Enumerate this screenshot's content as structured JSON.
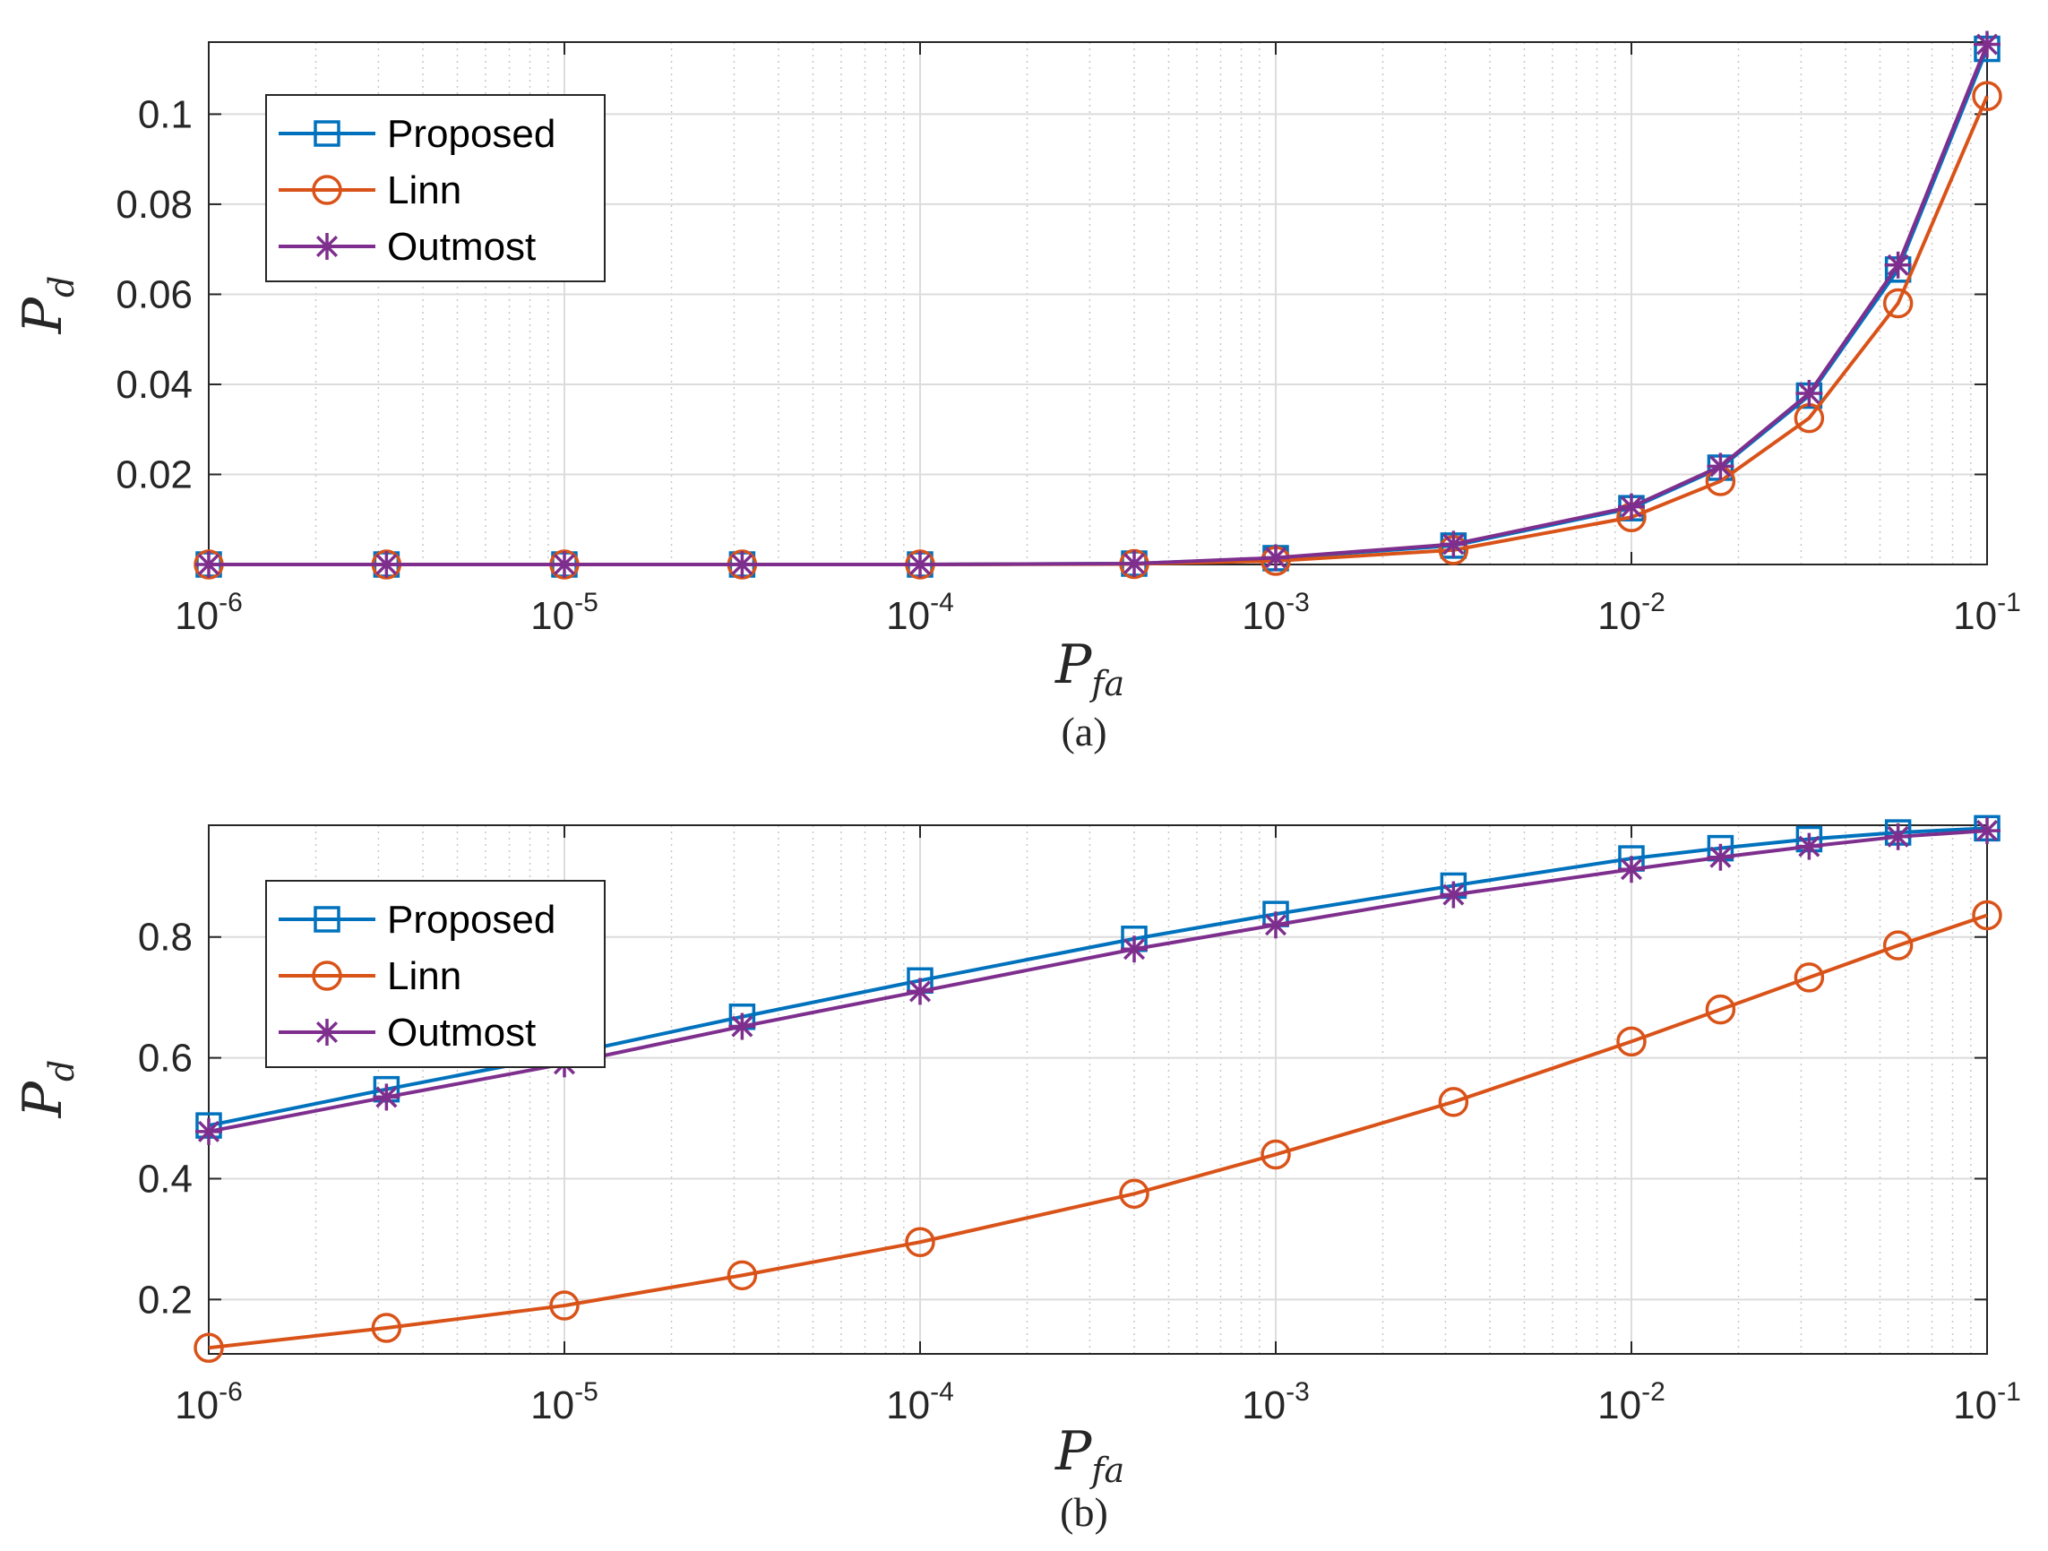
{
  "charts": [
    {
      "type": "line",
      "caption": "(a)",
      "xlabel": "P",
      "xlabel_sub": "fa",
      "ylabel": "P",
      "ylabel_sub": "d",
      "xscale": "log",
      "xlim": [
        1e-06,
        0.1
      ],
      "ylim": [
        0,
        0.116
      ],
      "yticks": [
        0.02,
        0.04,
        0.06,
        0.08,
        0.1
      ],
      "ytick_labels": [
        "0.02",
        "0.04",
        "0.06",
        "0.08",
        "0.1"
      ],
      "xtick_exponents": [
        "-6",
        "-5",
        "-4",
        "-3",
        "-2",
        "-1"
      ],
      "x": [
        1e-06,
        3.16e-06,
        1e-05,
        3.16e-05,
        0.0001,
        0.0004,
        0.001,
        0.00316,
        0.01,
        0.0178,
        0.0316,
        0.0562,
        0.1
      ],
      "series": [
        {
          "name": "Proposed",
          "color": "#0072BD",
          "marker": "square",
          "values": [
            0,
            0,
            0,
            0,
            0,
            0.0002,
            0.0014,
            0.0042,
            0.0125,
            0.0215,
            0.0375,
            0.0655,
            0.1145
          ]
        },
        {
          "name": "Linn",
          "color": "#D95319",
          "marker": "circle",
          "values": [
            0,
            0,
            0,
            0,
            0,
            0.0001,
            0.0008,
            0.0032,
            0.0105,
            0.0185,
            0.0325,
            0.058,
            0.104
          ]
        },
        {
          "name": "Outmost",
          "color": "#7E2F8E",
          "marker": "star",
          "values": [
            0,
            0,
            0,
            0,
            0,
            0.0002,
            0.0015,
            0.0045,
            0.0128,
            0.0218,
            0.038,
            0.0665,
            0.1155
          ]
        }
      ],
      "legend": {
        "position": "top-left",
        "entries": [
          "Proposed",
          "Linn",
          "Outmost"
        ]
      }
    },
    {
      "type": "line",
      "caption": "(b)",
      "xlabel": "P",
      "xlabel_sub": "fa",
      "ylabel": "P",
      "ylabel_sub": "d",
      "xscale": "log",
      "xlim": [
        1e-06,
        0.1
      ],
      "ylim": [
        0.11,
        0.985
      ],
      "yticks": [
        0.2,
        0.4,
        0.6,
        0.8
      ],
      "ytick_labels": [
        "0.2",
        "0.4",
        "0.6",
        "0.8"
      ],
      "xtick_exponents": [
        "-6",
        "-5",
        "-4",
        "-3",
        "-2",
        "-1"
      ],
      "x": [
        1e-06,
        3.16e-06,
        1e-05,
        3.16e-05,
        0.0001,
        0.0004,
        0.001,
        0.00316,
        0.01,
        0.0178,
        0.0316,
        0.0562,
        0.1
      ],
      "series": [
        {
          "name": "Proposed",
          "color": "#0072BD",
          "marker": "square",
          "values": [
            0.488,
            0.548,
            0.605,
            0.668,
            0.728,
            0.797,
            0.838,
            0.885,
            0.93,
            0.947,
            0.962,
            0.973,
            0.98
          ]
        },
        {
          "name": "Linn",
          "color": "#D95319",
          "marker": "circle",
          "values": [
            0.12,
            0.153,
            0.19,
            0.24,
            0.295,
            0.375,
            0.44,
            0.527,
            0.627,
            0.68,
            0.733,
            0.786,
            0.836
          ]
        },
        {
          "name": "Outmost",
          "color": "#7E2F8E",
          "marker": "star",
          "values": [
            0.478,
            0.535,
            0.59,
            0.652,
            0.71,
            0.78,
            0.82,
            0.87,
            0.912,
            0.932,
            0.95,
            0.966,
            0.976
          ]
        }
      ],
      "legend": {
        "position": "top-left",
        "entries": [
          "Proposed",
          "Linn",
          "Outmost"
        ]
      }
    }
  ]
}
